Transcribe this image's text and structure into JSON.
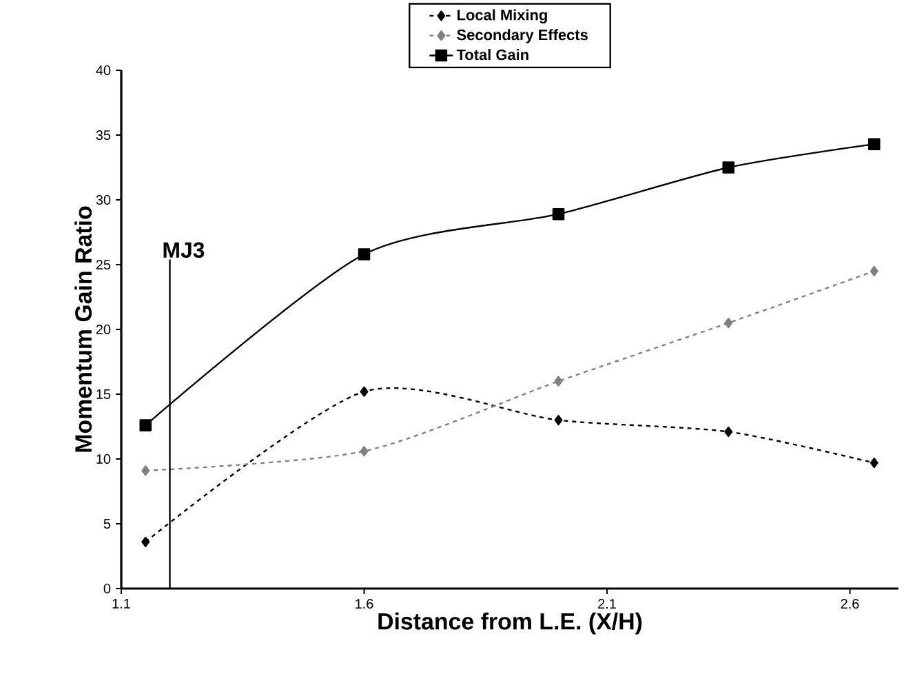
{
  "chart_data": {
    "type": "line",
    "xlabel": "Distance from L.E. (X/H)",
    "ylabel": "Momentum Gain Ratio",
    "x": [
      1.15,
      1.6,
      2.0,
      2.35,
      2.65
    ],
    "series": [
      {
        "name": "Local Mixing",
        "color": "#000000",
        "values": [
          3.6,
          15.2,
          13.0,
          12.1,
          9.7
        ],
        "marker": "diamond",
        "line_style": "dashed"
      },
      {
        "name": "Secondary Effects",
        "color": "#808080",
        "values": [
          9.1,
          10.6,
          16.0,
          20.5,
          24.5
        ],
        "marker": "diamond",
        "line_style": "dashed"
      },
      {
        "name": "Total Gain",
        "color": "#000000",
        "values": [
          12.6,
          25.8,
          28.9,
          32.5,
          34.3
        ],
        "marker": "square",
        "line_style": "solid"
      }
    ],
    "xlim": [
      1.1,
      2.7
    ],
    "xticks": [
      1.1,
      1.6,
      2.1,
      2.6
    ],
    "ylim": [
      0,
      40
    ],
    "yticks": [
      0,
      5,
      10,
      15,
      20,
      25,
      30,
      35,
      40
    ],
    "ref_lines": [
      {
        "axis": "x",
        "value": 1.2,
        "label": "MJ3",
        "color": "#000000"
      }
    ],
    "grid": false,
    "legend": "top"
  }
}
